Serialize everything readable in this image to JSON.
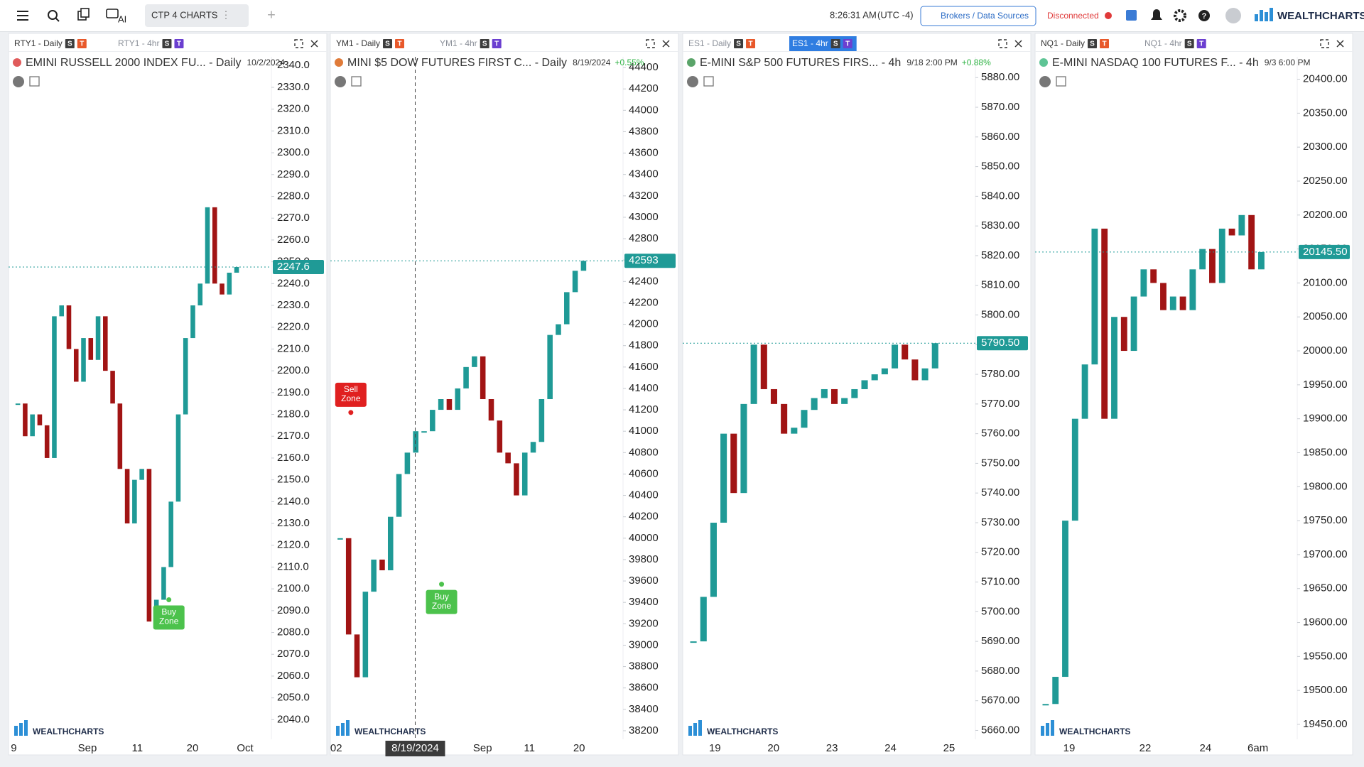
{
  "toolbar": {
    "layout_name": "CTP 4 CHARTS",
    "ai": "AI",
    "time": "8:26:31 AM",
    "timezone": "(UTC -4)",
    "brokers": "Brokers / Data Sources",
    "status": "Disconnected",
    "brand": "WEALTHCHARTS"
  },
  "panels": [
    {
      "tabs": [
        {
          "label": "RTY1 - Daily",
          "badges": [
            "S",
            "T"
          ]
        },
        {
          "label": "RTY1 - 4hr",
          "badges": [
            "S",
            "T"
          ]
        }
      ],
      "title": "EMINI RUSSELL 2000 INDEX FU... - Daily",
      "date": "10/2/2024",
      "ylim": [
        2031,
        2344
      ],
      "yticks": [
        {
          "value": 2040,
          "label": "2040.0"
        },
        {
          "value": 2050,
          "label": "2050.0"
        },
        {
          "value": 2060,
          "label": "2060.0"
        },
        {
          "value": 2070,
          "label": "2070.0"
        },
        {
          "value": 2080,
          "label": "2080.0"
        },
        {
          "value": 2090,
          "label": "2090.0"
        },
        {
          "value": 2100,
          "label": "2100.0"
        },
        {
          "value": 2110,
          "label": "2110.0"
        },
        {
          "value": 2120,
          "label": "2120.0"
        },
        {
          "value": 2130,
          "label": "2130.0"
        },
        {
          "value": 2140,
          "label": "2140.0"
        },
        {
          "value": 2150,
          "label": "2150.0"
        },
        {
          "value": 2160,
          "label": "2160.0"
        },
        {
          "value": 2170,
          "label": "2170.0"
        },
        {
          "value": 2180,
          "label": "2180.0"
        },
        {
          "value": 2190,
          "label": "2190.0"
        },
        {
          "value": 2200,
          "label": "2200.0"
        },
        {
          "value": 2210,
          "label": "2210.0"
        },
        {
          "value": 2220,
          "label": "2220.0"
        },
        {
          "value": 2230,
          "label": "2230.0"
        },
        {
          "value": 2240,
          "label": "2240.0"
        },
        {
          "value": 2250,
          "label": "2250.0"
        },
        {
          "value": 2260,
          "label": "2260.0"
        },
        {
          "value": 2270,
          "label": "2270.0"
        },
        {
          "value": 2280,
          "label": "2280.0"
        },
        {
          "value": 2290,
          "label": "2290.0"
        },
        {
          "value": 2300,
          "label": "2300.0"
        },
        {
          "value": 2310,
          "label": "2310.0"
        },
        {
          "value": 2320,
          "label": "2320.0"
        },
        {
          "value": 2330,
          "label": "2330.0"
        },
        {
          "value": 2340,
          "label": "2340.0"
        }
      ],
      "closes": [
        2185,
        2170,
        2180,
        2175,
        2160,
        2225,
        2230,
        2210,
        2195,
        2215,
        2205,
        2225,
        2200,
        2185,
        2155,
        2130,
        2150,
        2155,
        2085,
        2095,
        2110,
        2140,
        2180,
        2215,
        2230,
        2240,
        2275,
        2240,
        2235,
        2245,
        2247.6
      ],
      "last_price": 2247.6,
      "x_labels": [
        "9",
        "Sep",
        "11",
        "20",
        "Oct"
      ],
      "annotations": [
        {
          "lines": [
            "Buy",
            "Zone"
          ],
          "value": 2095,
          "color": "#4cc24c"
        }
      ]
    },
    {
      "tabs": [
        {
          "label": "YM1 - Daily",
          "badges": [
            "S",
            "T"
          ]
        },
        {
          "label": "YM1 - 4hr",
          "badges": [
            "S",
            "T"
          ]
        }
      ],
      "title": "MINI $5 DOW FUTURES FIRST C... - Daily",
      "date": "8/19/2024",
      "change": "+0.55%",
      "ylim": [
        38120,
        44500
      ],
      "yticks": [
        38200,
        38400,
        38600,
        38800,
        39000,
        39200,
        39400,
        39600,
        39800,
        40000,
        40200,
        40400,
        40600,
        40800,
        41000,
        41200,
        41400,
        41600,
        41800,
        42000,
        42200,
        42400,
        42600,
        42800,
        43000,
        43200,
        43400,
        43600,
        43800,
        44000,
        44200,
        44400
      ],
      "closes": [
        40000,
        39100,
        38700,
        39500,
        39800,
        39700,
        40200,
        40600,
        40800,
        41000,
        41000,
        41200,
        41300,
        41200,
        41400,
        41600,
        41700,
        41300,
        41100,
        40800,
        40700,
        40400,
        40800,
        40900,
        41300,
        41900,
        42000,
        42300,
        42500,
        42593
      ],
      "last_price": 42593,
      "x_labels": [
        "02",
        "Sep",
        "11",
        "20"
      ],
      "crosshair_label": "8/19/2024",
      "annotations": [
        {
          "lines": [
            "Sell",
            "Zone"
          ],
          "value": 41175,
          "color": "#e02020"
        },
        {
          "lines": [
            "Buy",
            "Zone"
          ],
          "value": 39570,
          "color": "#4cc24c"
        }
      ]
    },
    {
      "tabs": [
        {
          "label": "ES1 - Daily",
          "badges": [
            "S",
            "T"
          ]
        },
        {
          "label": "ES1 - 4hr",
          "badges": [
            "S",
            "T"
          ]
        }
      ],
      "active_tab": 1,
      "title": "E-MINI S&P 500 FUTURES FIRS... - 4h",
      "date": "9/18 2:00 PM",
      "change": "+0.88%",
      "ylim": [
        5657,
        5887
      ],
      "yticks": [
        {
          "value": 5660,
          "label": "5660.00"
        },
        {
          "value": 5670,
          "label": "5670.00"
        },
        {
          "value": 5680,
          "label": "5680.00"
        },
        {
          "value": 5690,
          "label": "5690.00"
        },
        {
          "value": 5700,
          "label": "5700.00"
        },
        {
          "value": 5710,
          "label": "5710.00"
        },
        {
          "value": 5720,
          "label": "5720.00"
        },
        {
          "value": 5730,
          "label": "5730.00"
        },
        {
          "value": 5740,
          "label": "5740.00"
        },
        {
          "value": 5750,
          "label": "5750.00"
        },
        {
          "value": 5760,
          "label": "5760.00"
        },
        {
          "value": 5770,
          "label": "5770.00"
        },
        {
          "value": 5780,
          "label": "5780.00"
        },
        {
          "value": 5790,
          "label": "5790.00"
        },
        {
          "value": 5800,
          "label": "5800.00"
        },
        {
          "value": 5810,
          "label": "5810.00"
        },
        {
          "value": 5820,
          "label": "5820.00"
        },
        {
          "value": 5830,
          "label": "5830.00"
        },
        {
          "value": 5840,
          "label": "5840.00"
        },
        {
          "value": 5850,
          "label": "5850.00"
        },
        {
          "value": 5860,
          "label": "5860.00"
        },
        {
          "value": 5870,
          "label": "5870.00"
        },
        {
          "value": 5880,
          "label": "5880.00"
        }
      ],
      "closes": [
        5690,
        5705,
        5730,
        5760,
        5740,
        5770,
        5790,
        5775,
        5770,
        5760,
        5762,
        5768,
        5772,
        5775,
        5770,
        5772,
        5775,
        5778,
        5780,
        5782,
        5790,
        5785,
        5778,
        5782,
        5790.5
      ],
      "last_price": {
        "value": 5790.5,
        "label": "5790.50"
      },
      "x_labels": [
        "19",
        "20",
        "23",
        "24",
        "25"
      ]
    },
    {
      "tabs": [
        {
          "label": "NQ1 - Daily",
          "badges": [
            "S",
            "T"
          ]
        },
        {
          "label": "NQ1 - 4hr",
          "badges": [
            "S",
            "T"
          ]
        }
      ],
      "title": "E-MINI NASDAQ 100 FUTURES F... - 4h",
      "date": "9/3 6:00 PM",
      "ylim": [
        19428,
        20433
      ],
      "yticks": [
        {
          "value": 19450,
          "label": "19450.00"
        },
        {
          "value": 19500,
          "label": "19500.00"
        },
        {
          "value": 19550,
          "label": "19550.00"
        },
        {
          "value": 19600,
          "label": "19600.00"
        },
        {
          "value": 19650,
          "label": "19650.00"
        },
        {
          "value": 19700,
          "label": "19700.00"
        },
        {
          "value": 19750,
          "label": "19750.00"
        },
        {
          "value": 19800,
          "label": "19800.00"
        },
        {
          "value": 19850,
          "label": "19850.00"
        },
        {
          "value": 19900,
          "label": "19900.00"
        },
        {
          "value": 19950,
          "label": "19950.00"
        },
        {
          "value": 20000,
          "label": "20000.00"
        },
        {
          "value": 20050,
          "label": "20050.00"
        },
        {
          "value": 20100,
          "label": "20100.00"
        },
        {
          "value": 20150,
          "label": "20150.00"
        },
        {
          "value": 20200,
          "label": "20200.00"
        },
        {
          "value": 20250,
          "label": "20250.00"
        },
        {
          "value": 20300,
          "label": "20300.00"
        },
        {
          "value": 20350,
          "label": "20350.00"
        },
        {
          "value": 20400,
          "label": "20400.00"
        }
      ],
      "closes": [
        19480,
        19520,
        19750,
        19900,
        19980,
        20180,
        19900,
        20050,
        20000,
        20080,
        20120,
        20100,
        20060,
        20080,
        20060,
        20120,
        20150,
        20100,
        20180,
        20170,
        20200,
        20120,
        20145.5
      ],
      "last_price": {
        "value": 20145.5,
        "label": "20145.50"
      },
      "x_labels": [
        "19",
        "22",
        "24",
        "6am"
      ]
    }
  ]
}
